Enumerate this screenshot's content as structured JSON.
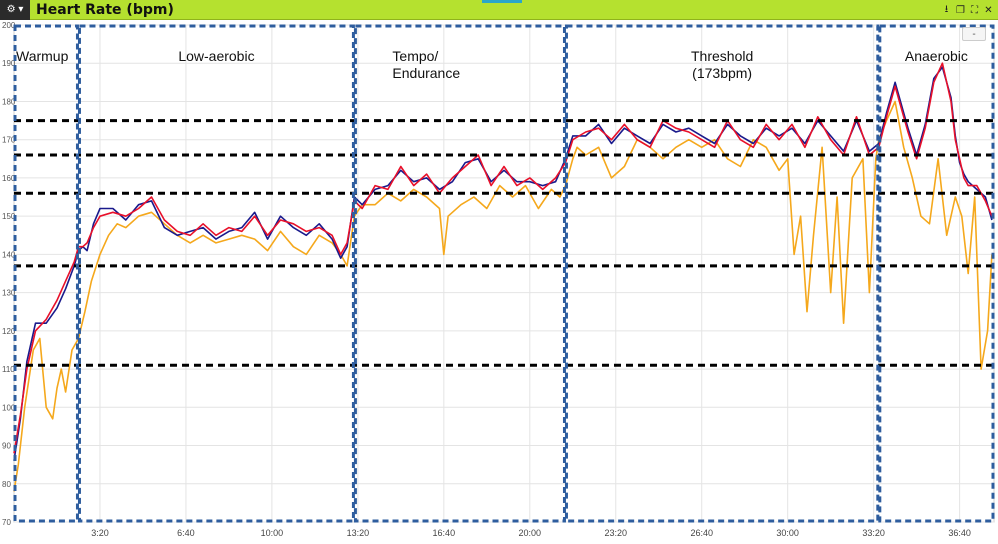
{
  "window": {
    "title": "Heart Rate (bpm)",
    "menu_icon": "gear-icon",
    "controls": [
      "download-icon",
      "restore-icon",
      "expand-icon",
      "close-icon"
    ],
    "zoom_out_label": "-"
  },
  "colors": {
    "titlebar": "#b5e12f",
    "red_series": "#e8102a",
    "blue_series": "#1a1a8c",
    "orange_series": "#f5a81c",
    "zone_line": "#000000",
    "segment_line": "#2e5d9e"
  },
  "chart_data": {
    "type": "line",
    "title": "Heart Rate (bpm)",
    "xlabel": "",
    "ylabel": "",
    "xlim": [
      0,
      2280
    ],
    "ylim": [
      70,
      200
    ],
    "grid": true,
    "x_ticks": [
      {
        "label": "3:20",
        "value": 200
      },
      {
        "label": "6:40",
        "value": 400
      },
      {
        "label": "10:00",
        "value": 600
      },
      {
        "label": "13:20",
        "value": 800
      },
      {
        "label": "16:40",
        "value": 1000
      },
      {
        "label": "20:00",
        "value": 1200
      },
      {
        "label": "23:20",
        "value": 1400
      },
      {
        "label": "26:40",
        "value": 1600
      },
      {
        "label": "30:00",
        "value": 1800
      },
      {
        "label": "33:20",
        "value": 2000
      },
      {
        "label": "36:40",
        "value": 2200
      }
    ],
    "y_ticks": [
      70,
      80,
      90,
      100,
      110,
      120,
      130,
      140,
      150,
      160,
      170,
      180,
      190,
      200
    ],
    "zone_thresholds": [
      111,
      137,
      156,
      166,
      175
    ],
    "segments": [
      {
        "label": "Warmup",
        "start": 0,
        "end": 150
      },
      {
        "label": "Low-aerobic",
        "start": 150,
        "end": 792
      },
      {
        "label": "Tempo/\nEndurance",
        "start": 792,
        "end": 1283
      },
      {
        "label": "Threshold\n(173bpm)",
        "start": 1283,
        "end": 2012
      },
      {
        "label": "Anaerobic",
        "start": 2012,
        "end": 2280
      }
    ],
    "series": [
      {
        "color": "#e8102a",
        "x": [
          0,
          15,
          30,
          50,
          75,
          100,
          120,
          140,
          150,
          160,
          170,
          185,
          200,
          230,
          260,
          290,
          320,
          350,
          380,
          410,
          440,
          470,
          500,
          530,
          560,
          590,
          620,
          650,
          680,
          710,
          740,
          760,
          775,
          792,
          810,
          840,
          870,
          900,
          930,
          960,
          990,
          1020,
          1050,
          1080,
          1110,
          1140,
          1170,
          1200,
          1230,
          1260,
          1283,
          1300,
          1330,
          1360,
          1390,
          1420,
          1450,
          1480,
          1510,
          1540,
          1570,
          1600,
          1630,
          1660,
          1690,
          1720,
          1750,
          1780,
          1810,
          1840,
          1870,
          1900,
          1930,
          1960,
          1990,
          2012,
          2030,
          2050,
          2060,
          2080,
          2100,
          2120,
          2140,
          2160,
          2180,
          2190,
          2200,
          2210,
          2220,
          2240,
          2260,
          2275
        ],
        "y": [
          88,
          98,
          110,
          120,
          123,
          128,
          133,
          138,
          142,
          142,
          143,
          147,
          150,
          151,
          150,
          152,
          155,
          149,
          146,
          145,
          148,
          145,
          147,
          146,
          150,
          145,
          149,
          148,
          146,
          147,
          145,
          140,
          143,
          154,
          152,
          158,
          157,
          163,
          158,
          161,
          156,
          160,
          163,
          166,
          158,
          163,
          158,
          160,
          157,
          160,
          164,
          170,
          172,
          173,
          170,
          174,
          170,
          168,
          175,
          173,
          172,
          170,
          168,
          175,
          170,
          168,
          174,
          170,
          174,
          168,
          176,
          170,
          166,
          176,
          166,
          168,
          176,
          184,
          180,
          172,
          165,
          173,
          185,
          190,
          180,
          170,
          165,
          160,
          158,
          158,
          154,
          150
        ]
      },
      {
        "color": "#1a1a8c",
        "x": [
          0,
          15,
          30,
          50,
          75,
          100,
          120,
          140,
          150,
          160,
          170,
          185,
          200,
          230,
          260,
          290,
          320,
          350,
          380,
          410,
          440,
          470,
          500,
          530,
          560,
          590,
          620,
          650,
          680,
          710,
          740,
          760,
          775,
          792,
          810,
          840,
          870,
          900,
          930,
          960,
          990,
          1020,
          1050,
          1080,
          1110,
          1140,
          1170,
          1200,
          1230,
          1260,
          1283,
          1300,
          1330,
          1360,
          1390,
          1420,
          1450,
          1480,
          1510,
          1540,
          1570,
          1600,
          1630,
          1660,
          1690,
          1720,
          1750,
          1780,
          1810,
          1840,
          1870,
          1900,
          1930,
          1960,
          1990,
          2012,
          2030,
          2050,
          2060,
          2080,
          2100,
          2120,
          2140,
          2160,
          2180,
          2190,
          2200,
          2210,
          2220,
          2240,
          2260,
          2275
        ],
        "y": [
          86,
          97,
          112,
          122,
          122,
          126,
          131,
          137,
          141,
          142,
          141,
          148,
          152,
          152,
          149,
          153,
          154,
          147,
          145,
          146,
          147,
          144,
          146,
          147,
          151,
          144,
          150,
          147,
          145,
          148,
          144,
          139,
          142,
          155,
          153,
          157,
          158,
          162,
          159,
          160,
          157,
          159,
          164,
          165,
          159,
          162,
          159,
          159,
          158,
          159,
          165,
          171,
          171,
          174,
          169,
          173,
          171,
          169,
          174,
          172,
          173,
          171,
          169,
          174,
          171,
          169,
          173,
          171,
          173,
          169,
          175,
          171,
          167,
          175,
          167,
          169,
          177,
          185,
          181,
          173,
          166,
          174,
          186,
          189,
          181,
          171,
          164,
          161,
          159,
          157,
          155,
          149
        ]
      },
      {
        "color": "#f5a81c",
        "x": [
          0,
          10,
          25,
          45,
          60,
          75,
          90,
          100,
          110,
          120,
          135,
          150,
          165,
          180,
          200,
          220,
          240,
          260,
          290,
          320,
          350,
          380,
          410,
          440,
          470,
          500,
          530,
          560,
          590,
          620,
          650,
          680,
          710,
          740,
          760,
          775,
          792,
          810,
          840,
          870,
          900,
          930,
          960,
          990,
          1000,
          1010,
          1040,
          1070,
          1100,
          1130,
          1160,
          1190,
          1220,
          1250,
          1270,
          1283,
          1300,
          1310,
          1330,
          1360,
          1390,
          1420,
          1450,
          1480,
          1510,
          1540,
          1570,
          1600,
          1630,
          1660,
          1690,
          1720,
          1750,
          1780,
          1800,
          1815,
          1830,
          1845,
          1860,
          1880,
          1900,
          1915,
          1930,
          1950,
          1975,
          1990,
          2005,
          2012,
          2030,
          2050,
          2070,
          2090,
          2110,
          2130,
          2150,
          2170,
          2190,
          2205,
          2220,
          2235,
          2250,
          2265,
          2275
        ],
        "y": [
          78,
          85,
          100,
          115,
          118,
          100,
          97,
          105,
          110,
          104,
          115,
          118,
          125,
          133,
          140,
          145,
          148,
          147,
          150,
          151,
          148,
          145,
          143,
          145,
          143,
          144,
          145,
          144,
          141,
          146,
          142,
          140,
          145,
          143,
          140,
          137,
          150,
          153,
          153,
          156,
          154,
          157,
          155,
          152,
          140,
          150,
          153,
          155,
          152,
          158,
          155,
          158,
          152,
          157,
          155,
          158,
          165,
          168,
          166,
          168,
          160,
          163,
          170,
          168,
          165,
          168,
          170,
          168,
          170,
          165,
          163,
          170,
          168,
          162,
          165,
          140,
          150,
          125,
          145,
          168,
          130,
          155,
          122,
          160,
          165,
          130,
          165,
          170,
          175,
          180,
          168,
          160,
          150,
          148,
          165,
          145,
          155,
          150,
          135,
          155,
          110,
          120,
          140
        ]
      }
    ]
  }
}
